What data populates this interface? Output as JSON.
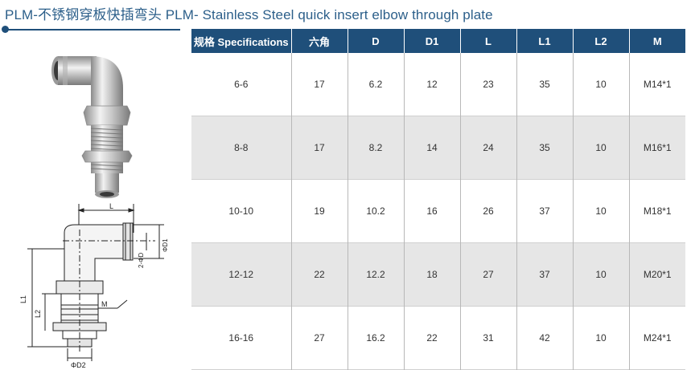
{
  "title": "PLM-不锈钢穿板快插弯头 PLM- Stainless Steel quick insert elbow through plate",
  "colors": {
    "header_bg": "#1f4f7a",
    "alt_row": "#e6e6e6",
    "title": "#2c5f8a"
  },
  "table": {
    "headers": [
      "规格 Specifications",
      "六角",
      "D",
      "D1",
      "L",
      "L1",
      "L2",
      "M"
    ],
    "rows": [
      [
        "6-6",
        "17",
        "6.2",
        "12",
        "23",
        "35",
        "10",
        "M14*1"
      ],
      [
        "8-8",
        "17",
        "8.2",
        "14",
        "24",
        "35",
        "10",
        "M16*1"
      ],
      [
        "10-10",
        "19",
        "10.2",
        "16",
        "26",
        "37",
        "10",
        "M18*1"
      ],
      [
        "12-12",
        "22",
        "12.2",
        "18",
        "27",
        "37",
        "10",
        "M20*1"
      ],
      [
        "16-16",
        "27",
        "16.2",
        "22",
        "31",
        "42",
        "10",
        "M24*1"
      ]
    ]
  },
  "drawing": {
    "labels": {
      "L": "L",
      "L1": "L1",
      "L2": "L2",
      "D": "2-ΦD",
      "D1": "ΦD1",
      "M": "M",
      "D2": "ΦD2"
    }
  }
}
